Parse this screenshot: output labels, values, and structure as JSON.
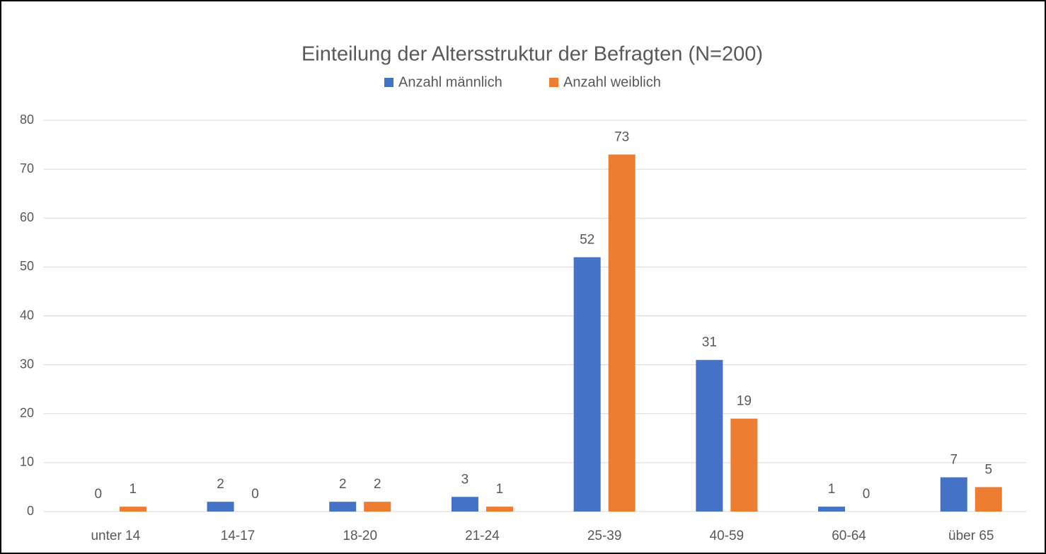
{
  "chart_data": {
    "type": "bar",
    "title": "Einteilung der Altersstruktur der Befragten (N=200)",
    "categories": [
      "unter 14",
      "14-17",
      "18-20",
      "21-24",
      "25-39",
      "40-59",
      "60-64",
      "über 65"
    ],
    "series": [
      {
        "name": "Anzahl männlich",
        "color": "#4472c4",
        "values": [
          0,
          2,
          2,
          3,
          52,
          31,
          1,
          7
        ]
      },
      {
        "name": "Anzahl weiblich",
        "color": "#ed7d31",
        "values": [
          1,
          0,
          2,
          1,
          73,
          19,
          0,
          5
        ]
      }
    ],
    "ylim": [
      0,
      80
    ],
    "yticks": [
      0,
      10,
      20,
      30,
      40,
      50,
      60,
      70,
      80
    ],
    "grid": true,
    "legend": "top"
  }
}
